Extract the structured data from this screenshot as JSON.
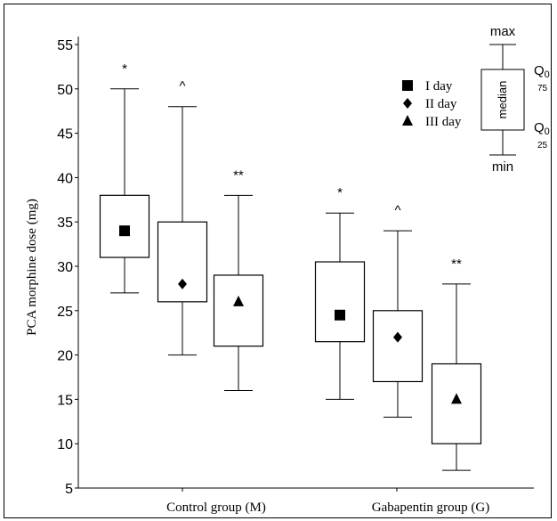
{
  "chart_data": {
    "type": "box",
    "ylabel": "PCA morphine dose (mg)",
    "yticks": [
      5,
      10,
      15,
      20,
      25,
      30,
      35,
      40,
      45,
      50,
      55
    ],
    "ylim": [
      5,
      55
    ],
    "groups": [
      {
        "label": "Control group (M)",
        "boxes": [
          {
            "day": "I day",
            "marker": "square",
            "min": 27,
            "q1": 31,
            "median": 34,
            "q3": 38,
            "max": 50,
            "annotation": "*"
          },
          {
            "day": "II day",
            "marker": "diamond",
            "min": 20,
            "q1": 26,
            "median": 28,
            "q3": 35,
            "max": 48,
            "annotation": "^"
          },
          {
            "day": "III day",
            "marker": "triangle",
            "min": 16,
            "q1": 21,
            "median": 26,
            "q3": 29,
            "max": 38,
            "annotation": "**"
          }
        ]
      },
      {
        "label": "Gabapentin group (G)",
        "boxes": [
          {
            "day": "I day",
            "marker": "square",
            "min": 15,
            "q1": 21.5,
            "median": 24.5,
            "q3": 30.5,
            "max": 36,
            "annotation": "*"
          },
          {
            "day": "II day",
            "marker": "diamond",
            "min": 13,
            "q1": 17,
            "median": 22,
            "q3": 25,
            "max": 34,
            "annotation": "^"
          },
          {
            "day": "III day",
            "marker": "triangle",
            "min": 7,
            "q1": 10,
            "median": 15,
            "q3": 19,
            "max": 28,
            "annotation": "**"
          }
        ]
      }
    ],
    "legend": {
      "placement": "top-right",
      "entries": [
        {
          "marker": "square",
          "label": "I day"
        },
        {
          "marker": "diamond",
          "label": "II day"
        },
        {
          "marker": "triangle",
          "label": "III day"
        }
      ]
    },
    "key": {
      "max": "max",
      "min": "min",
      "median": "median",
      "q75": "Q",
      "q75_sub": "0",
      "q75_sub2": "75",
      "q25": "Q",
      "q25_sub": "0",
      "q25_sub2": "25"
    },
    "colors": {
      "line": "#000000",
      "box_fill": "#ffffff"
    }
  }
}
